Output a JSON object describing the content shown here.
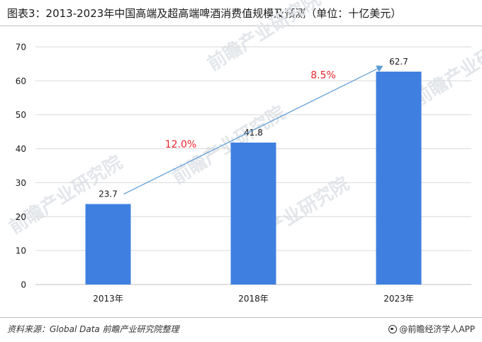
{
  "title": "图表3：2013-2023年中国高端及超高端啤酒消费值规模及预测（单位：十亿美元）",
  "source": "资料来源：Global Data 前瞻产业研究院整理",
  "brand": "@前瞻经济学人APP",
  "watermark": "前瞻产业研究院",
  "colors": {
    "bar": "#3f7fe0",
    "trend_line": "#5b9bd5",
    "growth_label": "#e8242b",
    "axis_text": "#1a1a1a",
    "grid": "#d9d9d9"
  },
  "chart_data": {
    "type": "bar",
    "categories": [
      "2013年",
      "2018年",
      "2023年"
    ],
    "values": [
      23.7,
      41.8,
      62.7
    ],
    "data_labels": [
      "23.7",
      "41.8",
      "62.7"
    ],
    "ylim": [
      0,
      70
    ],
    "yticks": [
      0,
      10,
      20,
      30,
      40,
      50,
      60,
      70
    ],
    "grid": true,
    "legend": "none",
    "annotations": [
      {
        "text": "12.0%",
        "between": [
          "2013年",
          "2018年"
        ]
      },
      {
        "text": "8.5%",
        "between": [
          "2018年",
          "2023年"
        ]
      }
    ],
    "trend_arrow": {
      "from": "2013年",
      "to": "2023年"
    }
  }
}
